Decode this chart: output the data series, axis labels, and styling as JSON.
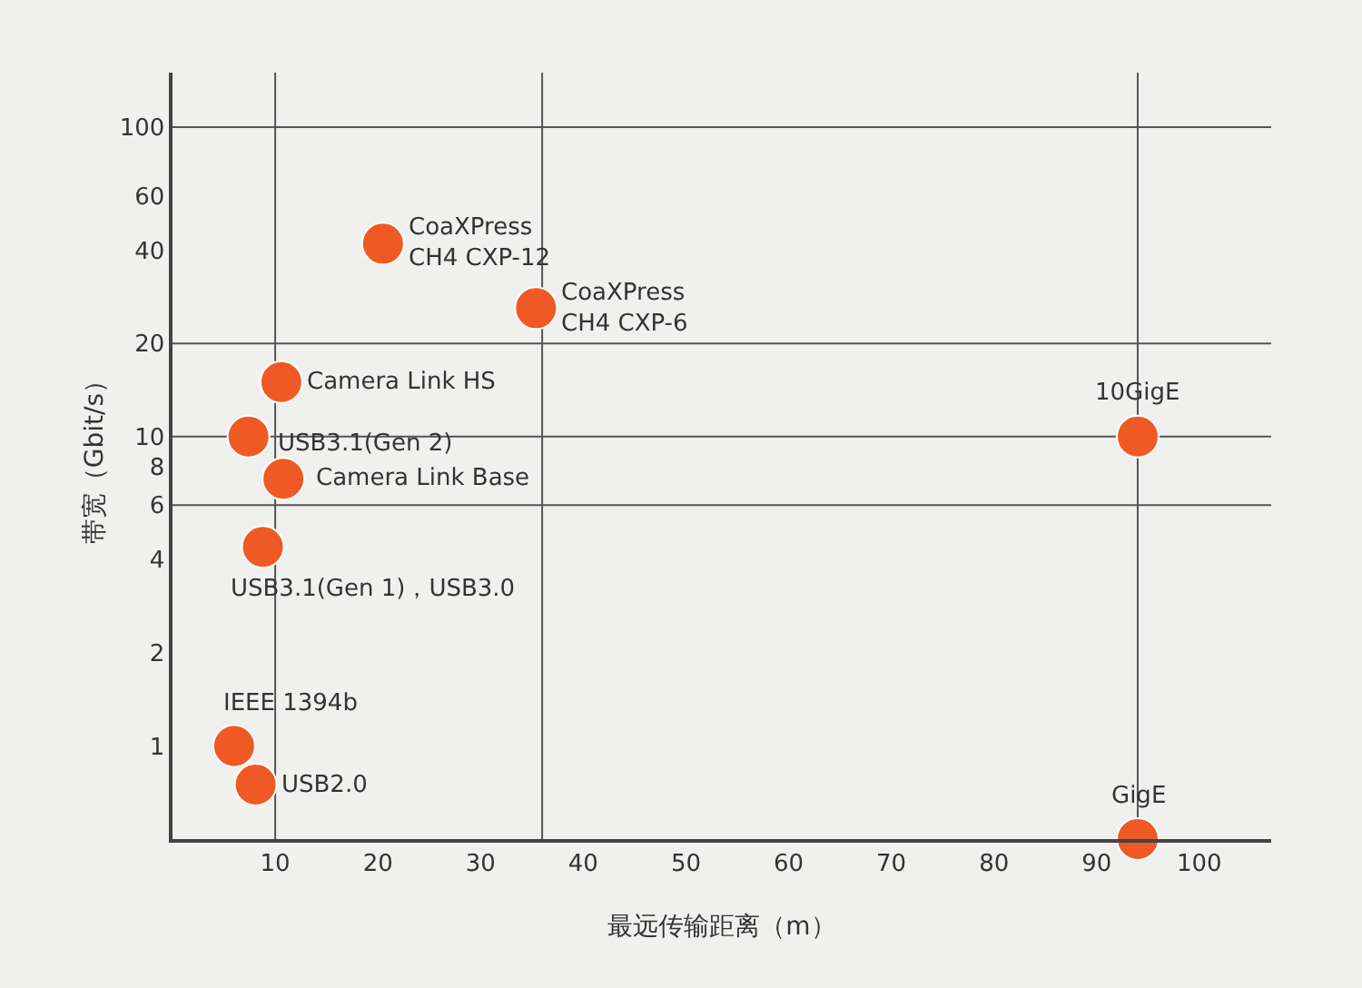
{
  "chart_data": {
    "type": "scatter",
    "xlabel": "最远传输距离（m）",
    "ylabel": "带宽（Gbit/s）",
    "x": [
      20.5,
      35.4,
      10.6,
      7.4,
      10.8,
      8.8,
      6,
      8.1,
      94,
      94
    ],
    "series": [
      {
        "color": "#ef5a24",
        "values": [
          42,
          26,
          15,
          10,
          7.3,
          4.4,
          1,
          0.75,
          10,
          0.5
        ]
      }
    ],
    "log": "y",
    "marker": "circle",
    "xlim": [
      0,
      107
    ],
    "xticks": [
      10,
      20,
      30,
      40,
      50,
      60,
      70,
      80,
      90,
      100
    ],
    "ylim": [
      0.5,
      150
    ],
    "yticks": [
      1,
      2,
      4,
      6,
      8,
      10,
      20,
      40,
      60,
      100
    ],
    "grid": false,
    "ref_lines": [
      {
        "axis": "y",
        "value": 100,
        "color": "#555555"
      },
      {
        "axis": "y",
        "value": 20,
        "color": "#555555"
      },
      {
        "axis": "y",
        "value": 10,
        "color": "#555555"
      },
      {
        "axis": "y",
        "value": 6,
        "color": "#555555"
      },
      {
        "axis": "x",
        "value": 10,
        "color": "#555555"
      },
      {
        "axis": "x",
        "value": 36,
        "color": "#555555"
      },
      {
        "axis": "x",
        "value": 94,
        "color": "#555555"
      }
    ],
    "annotations": [
      {
        "text": "CoaXPress\nCH4 CXP-12",
        "x": 20.5,
        "y": 42
      },
      {
        "text": "CoaXPress\nCH4 CXP-6",
        "x": 35.4,
        "y": 26
      },
      {
        "text": "Camera Link HS",
        "x": 10.6,
        "y": 15
      },
      {
        "text": "USB3.1(Gen 2)",
        "x": 7.4,
        "y": 10
      },
      {
        "text": "Camera Link Base",
        "x": 10.8,
        "y": 7.3
      },
      {
        "text": "USB3.1(Gen 1)，USB3.0",
        "x": 8.8,
        "y": 4.4
      },
      {
        "text": "IEEE 1394b",
        "x": 6,
        "y": 1
      },
      {
        "text": "USB2.0",
        "x": 8.1,
        "y": 0.75
      },
      {
        "text": "10GigE",
        "x": 94,
        "y": 10
      },
      {
        "text": "GigE",
        "x": 94,
        "y": 0.5
      }
    ]
  }
}
